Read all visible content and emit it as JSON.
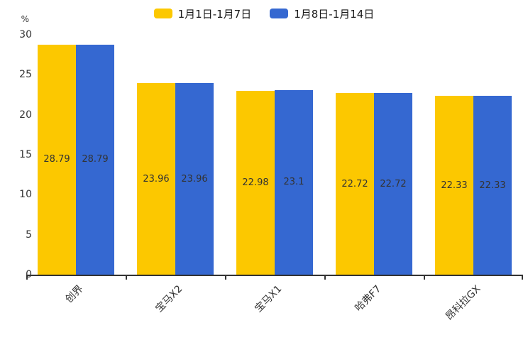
{
  "chart_data": {
    "type": "bar",
    "categories": [
      "创界",
      "宝马X2",
      "宝马X1",
      "哈弗F7",
      "昂科拉GX"
    ],
    "series": [
      {
        "name": "1月1日-1月7日",
        "color": "#FCC800",
        "values": [
          28.79,
          23.96,
          22.98,
          22.72,
          22.33
        ]
      },
      {
        "name": "1月8日-1月14日",
        "color": "#3568D1",
        "values": [
          28.79,
          23.96,
          23.1,
          22.72,
          22.33
        ]
      }
    ],
    "title": "",
    "xlabel": "",
    "ylabel": "%",
    "ylim": [
      0,
      30
    ],
    "yticks": [
      0,
      5,
      10,
      15,
      20,
      25,
      30
    ],
    "grid": false,
    "legend_position": "top-center",
    "value_labels": "inside-center",
    "bar_label_values": [
      "28.79",
      "23.96",
      "22.98",
      "23.1",
      "22.72",
      "22.33"
    ]
  },
  "colors": {
    "axis": "#333333",
    "tick_text": "#333333",
    "value_label_text": "#333333",
    "background": "#ffffff"
  }
}
